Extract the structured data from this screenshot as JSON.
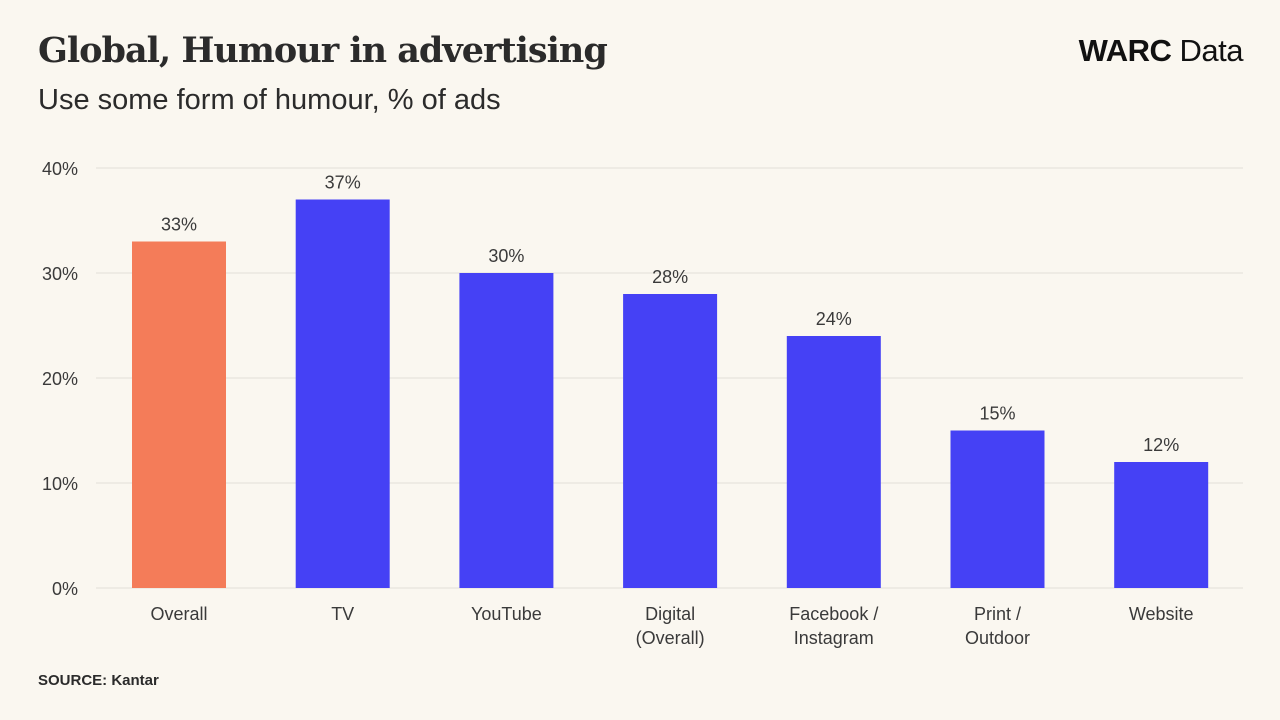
{
  "header": {
    "title": "Global, Humour in advertising",
    "subtitle": "Use some form of humour, % of ads",
    "logo_brand": "WARC",
    "logo_suffix": "Data"
  },
  "footer": {
    "source": "SOURCE: Kantar"
  },
  "colors": {
    "highlight": "#f47c59",
    "primary": "#4541f5",
    "background": "#faf7f0",
    "grid": "#e2dfd8"
  },
  "chart_data": {
    "type": "bar",
    "title": "Global, Humour in advertising",
    "subtitle": "Use some form of humour, % of ads",
    "xlabel": "",
    "ylabel": "",
    "categories": [
      [
        "Overall"
      ],
      [
        "TV"
      ],
      [
        "YouTube"
      ],
      [
        "Digital",
        "(Overall)"
      ],
      [
        "Facebook /",
        "Instagram"
      ],
      [
        "Print /",
        "Outdoor"
      ],
      [
        "Website"
      ]
    ],
    "values": [
      33,
      37,
      30,
      28,
      24,
      15,
      12
    ],
    "value_labels": [
      "33%",
      "37%",
      "30%",
      "28%",
      "24%",
      "15%",
      "12%"
    ],
    "highlight_index": 0,
    "ylim": [
      0,
      40
    ],
    "yticks": [
      0,
      10,
      20,
      30,
      40
    ],
    "ytick_labels": [
      "0%",
      "10%",
      "20%",
      "30%",
      "40%"
    ],
    "grid": true,
    "legend": "none",
    "source": "Kantar"
  }
}
